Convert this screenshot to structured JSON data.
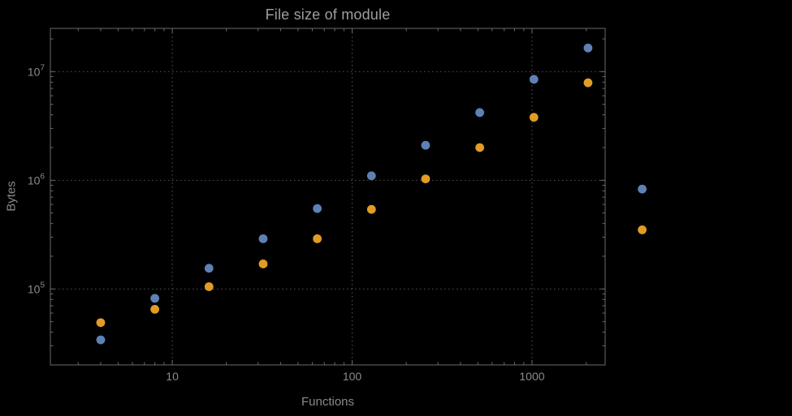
{
  "chart": {
    "title": "File size of module",
    "xlabel": "Functions",
    "ylabel": "Bytes"
  },
  "colors": {
    "background": "#000000",
    "frame": "#6a6a6a",
    "grid": "#555555",
    "tick": "#6a6a6a",
    "tick_text": "#8a8a8a",
    "title_text": "#9e9e9e",
    "series1": "#5e81b5",
    "series2": "#e19c24"
  },
  "chart_data": {
    "type": "scatter",
    "title": "File size of module",
    "xlabel": "Functions",
    "ylabel": "Bytes",
    "x_scale": "log",
    "y_scale": "log",
    "xlim": [
      2.1,
      2550
    ],
    "ylim": [
      20000,
      25000000
    ],
    "grid": true,
    "legend": "none",
    "x": [
      4,
      8,
      16,
      32,
      64,
      128,
      256,
      512,
      1024,
      2048,
      4096
    ],
    "series": [
      {
        "name": "series-1-blue",
        "color": "#5e81b5",
        "values": [
          34000,
          82000,
          155000,
          290000,
          550000,
          1100000,
          2100000,
          4200000,
          8500000,
          16500000,
          830000
        ]
      },
      {
        "name": "series-2-orange",
        "color": "#e19c24",
        "values": [
          49000,
          65000,
          105000,
          170000,
          290000,
          540000,
          1030000,
          2000000,
          3800000,
          7900000,
          350000
        ]
      }
    ],
    "xticks": [
      {
        "value": 10,
        "label": "10"
      },
      {
        "value": 100,
        "label": "100"
      },
      {
        "value": 1000,
        "label": "1000"
      }
    ],
    "yticks": [
      {
        "value": 100000,
        "mantissa": "10",
        "exponent": "5"
      },
      {
        "value": 1000000,
        "mantissa": "10",
        "exponent": "6"
      },
      {
        "value": 10000000,
        "mantissa": "10",
        "exponent": "7"
      }
    ]
  }
}
